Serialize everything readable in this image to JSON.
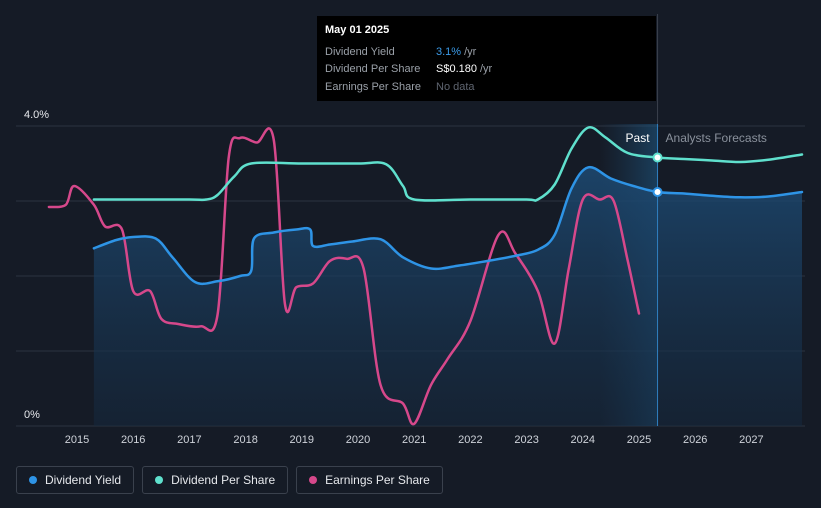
{
  "chart_data": {
    "type": "line",
    "title": "",
    "ylabel": "",
    "xlabel": "",
    "ylim": [
      0,
      4.0
    ],
    "y_tick_labels": [
      "4.0%",
      "0%"
    ],
    "x_ticks": [
      "2015",
      "2016",
      "2017",
      "2018",
      "2019",
      "2020",
      "2021",
      "2022",
      "2023",
      "2024",
      "2025",
      "2026",
      "2027"
    ],
    "past_label": "Past",
    "forecast_label": "Analysts Forecasts",
    "divider_date": 2025.33,
    "series": [
      {
        "name": "Dividend Yield",
        "color": "#2e94e6",
        "filled": true,
        "points": [
          [
            2015.3,
            2.37
          ],
          [
            2015.7,
            2.48
          ],
          [
            2016.0,
            2.52
          ],
          [
            2016.4,
            2.5
          ],
          [
            2016.7,
            2.25
          ],
          [
            2017.1,
            1.92
          ],
          [
            2017.5,
            1.93
          ],
          [
            2017.9,
            2.0
          ],
          [
            2018.1,
            2.07
          ],
          [
            2018.15,
            2.5
          ],
          [
            2018.5,
            2.58
          ],
          [
            2018.9,
            2.62
          ],
          [
            2019.15,
            2.62
          ],
          [
            2019.2,
            2.4
          ],
          [
            2019.5,
            2.42
          ],
          [
            2019.9,
            2.46
          ],
          [
            2020.4,
            2.49
          ],
          [
            2020.8,
            2.25
          ],
          [
            2021.3,
            2.1
          ],
          [
            2021.8,
            2.14
          ],
          [
            2022.3,
            2.2
          ],
          [
            2022.8,
            2.27
          ],
          [
            2023.2,
            2.35
          ],
          [
            2023.5,
            2.55
          ],
          [
            2023.8,
            3.17
          ],
          [
            2024.1,
            3.45
          ],
          [
            2024.5,
            3.3
          ],
          [
            2024.9,
            3.2
          ],
          [
            2025.33,
            3.12
          ],
          [
            2025.8,
            3.1
          ],
          [
            2026.3,
            3.07
          ],
          [
            2026.8,
            3.05
          ],
          [
            2027.3,
            3.06
          ],
          [
            2027.9,
            3.12
          ]
        ]
      },
      {
        "name": "Dividend Per Share",
        "color": "#5fe0cd",
        "filled": false,
        "points": [
          [
            2015.3,
            3.02
          ],
          [
            2016.0,
            3.02
          ],
          [
            2017.0,
            3.02
          ],
          [
            2017.3,
            3.02
          ],
          [
            2017.5,
            3.08
          ],
          [
            2017.8,
            3.33
          ],
          [
            2018.1,
            3.5
          ],
          [
            2019.0,
            3.5
          ],
          [
            2020.0,
            3.5
          ],
          [
            2020.5,
            3.49
          ],
          [
            2020.8,
            3.2
          ],
          [
            2021.0,
            3.02
          ],
          [
            2022.0,
            3.02
          ],
          [
            2023.0,
            3.02
          ],
          [
            2023.2,
            3.02
          ],
          [
            2023.5,
            3.22
          ],
          [
            2023.8,
            3.7
          ],
          [
            2024.1,
            3.98
          ],
          [
            2024.4,
            3.85
          ],
          [
            2024.8,
            3.64
          ],
          [
            2025.33,
            3.58
          ],
          [
            2025.8,
            3.56
          ],
          [
            2026.3,
            3.54
          ],
          [
            2026.8,
            3.52
          ],
          [
            2027.3,
            3.55
          ],
          [
            2027.9,
            3.62
          ]
        ]
      },
      {
        "name": "Earnings Per Share",
        "color": "#d6488b",
        "filled": false,
        "points": [
          [
            2014.5,
            2.92
          ],
          [
            2014.8,
            2.95
          ],
          [
            2014.95,
            3.2
          ],
          [
            2015.3,
            2.95
          ],
          [
            2015.5,
            2.66
          ],
          [
            2015.8,
            2.62
          ],
          [
            2016.0,
            1.8
          ],
          [
            2016.3,
            1.8
          ],
          [
            2016.5,
            1.43
          ],
          [
            2016.8,
            1.36
          ],
          [
            2017.2,
            1.33
          ],
          [
            2017.5,
            1.48
          ],
          [
            2017.7,
            3.58
          ],
          [
            2017.9,
            3.84
          ],
          [
            2018.2,
            3.78
          ],
          [
            2018.5,
            3.82
          ],
          [
            2018.7,
            1.63
          ],
          [
            2018.9,
            1.85
          ],
          [
            2019.2,
            1.9
          ],
          [
            2019.5,
            2.2
          ],
          [
            2019.8,
            2.23
          ],
          [
            2020.1,
            2.1
          ],
          [
            2020.4,
            0.55
          ],
          [
            2020.8,
            0.3
          ],
          [
            2021.0,
            0.03
          ],
          [
            2021.3,
            0.55
          ],
          [
            2021.6,
            0.9
          ],
          [
            2022.0,
            1.4
          ],
          [
            2022.5,
            2.55
          ],
          [
            2022.8,
            2.3
          ],
          [
            2023.2,
            1.8
          ],
          [
            2023.5,
            1.1
          ],
          [
            2023.75,
            2.1
          ],
          [
            2024.0,
            3.02
          ],
          [
            2024.3,
            3.02
          ],
          [
            2024.55,
            3.0
          ],
          [
            2024.8,
            2.2
          ],
          [
            2025.0,
            1.5
          ]
        ]
      }
    ],
    "forecast_markers": [
      {
        "series": "Dividend Per Share",
        "x": 2025.33,
        "y": 3.58
      },
      {
        "series": "Dividend Yield",
        "x": 2025.33,
        "y": 3.12
      }
    ]
  },
  "tooltip": {
    "date": "May 01 2025",
    "rows": [
      {
        "label": "Dividend Yield",
        "value": "3.1%",
        "unit": "/yr",
        "style": "blue"
      },
      {
        "label": "Dividend Per Share",
        "value": "S$0.180",
        "unit": "/yr",
        "style": "white"
      },
      {
        "label": "Earnings Per Share",
        "value": "No data",
        "unit": "",
        "style": "muted"
      }
    ]
  },
  "legend": [
    {
      "label": "Dividend Yield",
      "color": "#2e94e6"
    },
    {
      "label": "Dividend Per Share",
      "color": "#5fe0cd"
    },
    {
      "label": "Earnings Per Share",
      "color": "#d6488b"
    }
  ]
}
